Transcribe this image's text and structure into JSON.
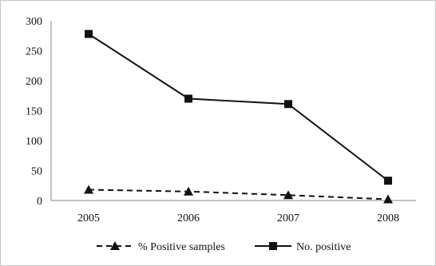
{
  "chart_data": {
    "type": "line",
    "title": "",
    "xlabel": "",
    "ylabel": "",
    "categories": [
      "2005",
      "2006",
      "2007",
      "2008"
    ],
    "ylim": [
      0,
      300
    ],
    "yticks": [
      0,
      50,
      100,
      150,
      200,
      250,
      300
    ],
    "grid": false,
    "legend_position": "bottom",
    "series": [
      {
        "name": "% Positive samples",
        "values": [
          18,
          15,
          9,
          2
        ],
        "color": "#111111",
        "line_style": "dashed",
        "marker": "triangle"
      },
      {
        "name": "No. positive",
        "values": [
          278,
          170,
          161,
          33
        ],
        "color": "#111111",
        "line_style": "solid",
        "marker": "square"
      }
    ]
  }
}
